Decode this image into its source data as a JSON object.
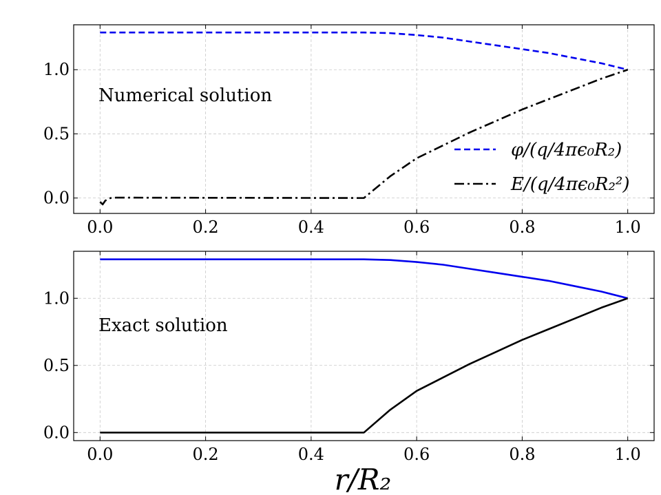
{
  "figure": {
    "xlabel": "r/R₂"
  },
  "chart_data": [
    {
      "type": "line",
      "annotation": "Numerical solution",
      "xlim": [
        -0.05,
        1.05
      ],
      "ylim": [
        -0.12,
        1.35
      ],
      "xticks": [
        0.0,
        0.2,
        0.4,
        0.6,
        0.8,
        1.0
      ],
      "xtick_labels": [
        "0.0",
        "0.2",
        "0.4",
        "0.6",
        "0.8",
        "1.0"
      ],
      "yticks": [
        0.0,
        0.5,
        1.0
      ],
      "ytick_labels": [
        "0.0",
        "0.5",
        "1.0"
      ],
      "grid": true,
      "legend_position": "lower-right",
      "series": [
        {
          "name": "φ/(q/4πϵ₀R₂)",
          "color": "#0000ee",
          "style": "dashed",
          "x": [
            0.0,
            0.5,
            0.55,
            0.6,
            0.65,
            0.7,
            0.75,
            0.8,
            0.85,
            0.9,
            0.95,
            1.0
          ],
          "y": [
            1.29,
            1.29,
            1.285,
            1.27,
            1.25,
            1.22,
            1.19,
            1.16,
            1.13,
            1.09,
            1.05,
            1.0
          ]
        },
        {
          "name": "E/(q/4πϵ₀R₂²)",
          "color": "#000000",
          "style": "dashdot",
          "x": [
            0.0,
            0.005,
            0.01,
            0.02,
            0.03,
            0.5,
            0.55,
            0.6,
            0.65,
            0.7,
            0.75,
            0.8,
            0.85,
            0.9,
            0.95,
            1.0
          ],
          "y": [
            -0.03,
            -0.05,
            -0.02,
            0.0,
            0.003,
            0.0,
            0.17,
            0.31,
            0.41,
            0.51,
            0.6,
            0.69,
            0.77,
            0.85,
            0.93,
            1.0
          ]
        }
      ]
    },
    {
      "type": "line",
      "annotation": "Exact solution",
      "xlim": [
        -0.05,
        1.05
      ],
      "ylim": [
        -0.06,
        1.35
      ],
      "xticks": [
        0.0,
        0.2,
        0.4,
        0.6,
        0.8,
        1.0
      ],
      "xtick_labels": [
        "0.0",
        "0.2",
        "0.4",
        "0.6",
        "0.8",
        "1.0"
      ],
      "yticks": [
        0.0,
        0.5,
        1.0
      ],
      "ytick_labels": [
        "0.0",
        "0.5",
        "1.0"
      ],
      "grid": true,
      "series": [
        {
          "color": "#0000ee",
          "style": "solid",
          "x": [
            0.0,
            0.5,
            0.55,
            0.6,
            0.65,
            0.7,
            0.75,
            0.8,
            0.85,
            0.9,
            0.95,
            1.0
          ],
          "y": [
            1.29,
            1.29,
            1.285,
            1.27,
            1.25,
            1.22,
            1.19,
            1.16,
            1.13,
            1.09,
            1.05,
            1.0
          ]
        },
        {
          "color": "#000000",
          "style": "solid",
          "x": [
            0.0,
            0.5,
            0.55,
            0.6,
            0.65,
            0.7,
            0.75,
            0.8,
            0.85,
            0.9,
            0.95,
            1.0
          ],
          "y": [
            0.0,
            0.0,
            0.17,
            0.31,
            0.41,
            0.51,
            0.6,
            0.69,
            0.77,
            0.85,
            0.93,
            1.0
          ]
        }
      ]
    }
  ]
}
